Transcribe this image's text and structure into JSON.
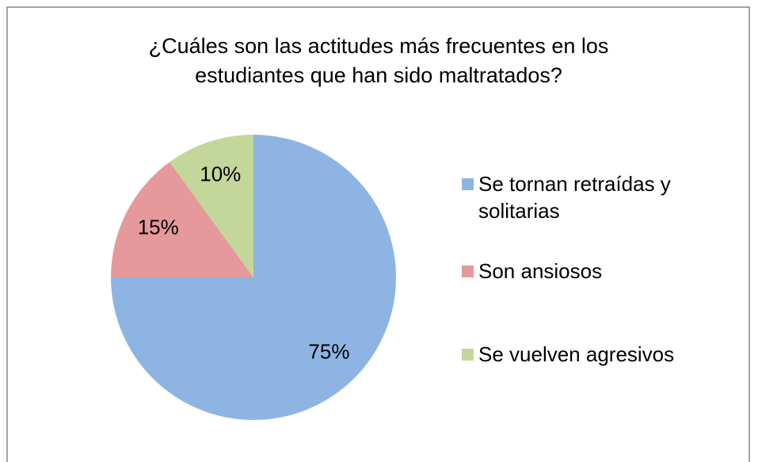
{
  "chart_data": {
    "type": "pie",
    "title": [
      "¿Cuáles son las actitudes más frecuentes en los",
      "estudiantes que han sido maltratados?"
    ],
    "categories": [
      "Se tornan retraídas y solitarias",
      "Son ansiosos",
      "Se vuelven agresivos"
    ],
    "values": [
      75,
      15,
      10
    ],
    "value_labels": [
      "75%",
      "15%",
      "10%"
    ],
    "colors": [
      "#8eb4e3",
      "#e6999a",
      "#c4d79b"
    ],
    "legend": "right"
  }
}
